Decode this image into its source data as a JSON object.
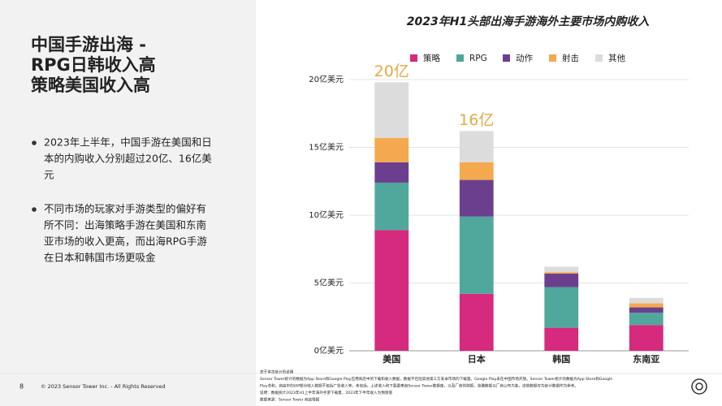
{
  "slide": {
    "title_lines": [
      "中国手游出海 -",
      "RPG日韩收入高",
      "策略美国收入高"
    ],
    "bullets": [
      [
        "2023年上半年，中国手游在美国和日",
        "本的内购收入分别超过20亿、16亿美",
        "元"
      ],
      [
        "不同市场的玩家对手游类型的偏好有",
        "所不同：出海策略手游在美国和东南",
        "亚市场的收入更高，而出海RPG手游",
        "在日本和韩国市场更吸金"
      ]
    ],
    "page_number": "8",
    "copyright": "© 2023 Sensor Tower Inc. - All Rights Reserved",
    "footnotes": [
      "关于本次统计的说明",
      "Sensor Tower统计的数据为App Store和Google Play应用商店中的下载和收入数据，数据不包括其他第三方安卓市场的下载量。Google Play未在中国市场开放。Sensor Tower统计的数据为App Store和Google",
      "Play总和，商店中的IAP部分收入数据不包括广告收入等，未包括。上述收入和下载量来自Sensor Tower数据库，以及厂商的财报，准确数据以厂商公布为准，这些数据仅为统计数据作为参考。",
      "说明：数据统计2023年H1上半年海外手游下载量，2023年下半年收入为预测值",
      "数据来源：Sensor Tower 商店情报"
    ]
  },
  "chart_data": {
    "type": "stacked_bar",
    "title": "2023年H1头部出海手游海外主要市场内购收入",
    "categories": [
      "美国",
      "日本",
      "韩国",
      "东南亚"
    ],
    "series": [
      {
        "name": "策略",
        "color": "#d62a7e",
        "values": [
          8.9,
          4.2,
          1.7,
          1.9
        ]
      },
      {
        "name": "RPG",
        "color": "#4fa89b",
        "values": [
          3.5,
          5.7,
          3.0,
          0.9
        ]
      },
      {
        "name": "动作",
        "color": "#6b3f8e",
        "values": [
          1.5,
          2.7,
          1.0,
          0.4
        ]
      },
      {
        "name": "射击",
        "color": "#f5a94e",
        "values": [
          1.8,
          1.3,
          0.1,
          0.3
        ]
      },
      {
        "name": "其他",
        "color": "#dcdcdc",
        "values": [
          4.1,
          2.3,
          0.4,
          0.4
        ]
      }
    ],
    "annotations": [
      "20亿",
      "16亿"
    ],
    "annotation_color": "#e3aa45",
    "ylim": [
      0,
      20
    ],
    "yticks": [
      {
        "value": 0,
        "label": "0亿美元"
      },
      {
        "value": 5,
        "label": "5亿美元"
      },
      {
        "value": 10,
        "label": "10亿美元"
      },
      {
        "value": 15,
        "label": "15亿美元"
      },
      {
        "value": 20,
        "label": "20亿美元"
      }
    ],
    "grid": true,
    "legend": "top"
  }
}
